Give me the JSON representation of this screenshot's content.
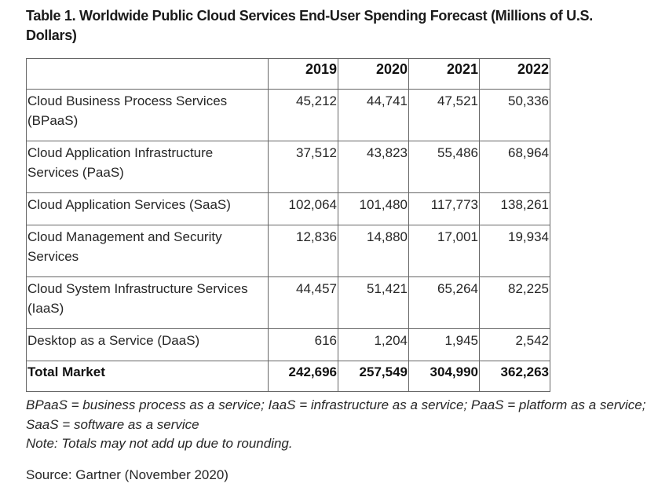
{
  "title": "Table 1. Worldwide Public Cloud Services End-User Spending Forecast (Millions of U.S. Dollars)",
  "table": {
    "corner": "",
    "years": [
      "2019",
      "2020",
      "2021",
      "2022"
    ],
    "rows": [
      {
        "label": "Cloud Business Process Services (BPaaS)",
        "values": [
          "45,212",
          "44,741",
          "47,521",
          "50,336"
        ]
      },
      {
        "label": "Cloud Application Infrastructure Services (PaaS)",
        "values": [
          "37,512",
          "43,823",
          "55,486",
          "68,964"
        ]
      },
      {
        "label": "Cloud Application Services (SaaS)",
        "values": [
          "102,064",
          "101,480",
          "117,773",
          "138,261"
        ]
      },
      {
        "label": "Cloud Management and Security Services",
        "values": [
          "12,836",
          "14,880",
          "17,001",
          "19,934"
        ]
      },
      {
        "label": "Cloud System Infrastructure Services (IaaS)",
        "values": [
          "44,457",
          "51,421",
          "65,264",
          "82,225"
        ]
      },
      {
        "label": "Desktop as a Service (DaaS)",
        "values": [
          "616",
          "1,204",
          "1,945",
          "2,542"
        ]
      }
    ],
    "total": {
      "label": "Total Market",
      "values": [
        "242,696",
        "257,549",
        "304,990",
        "362,263"
      ]
    }
  },
  "footnote": "BPaaS = business process as a service; IaaS = infrastructure as a service; PaaS = platform as a service; SaaS = software as a service",
  "note": "Note: Totals may not add up due to rounding.",
  "source": "Source: Gartner (November 2020)"
}
